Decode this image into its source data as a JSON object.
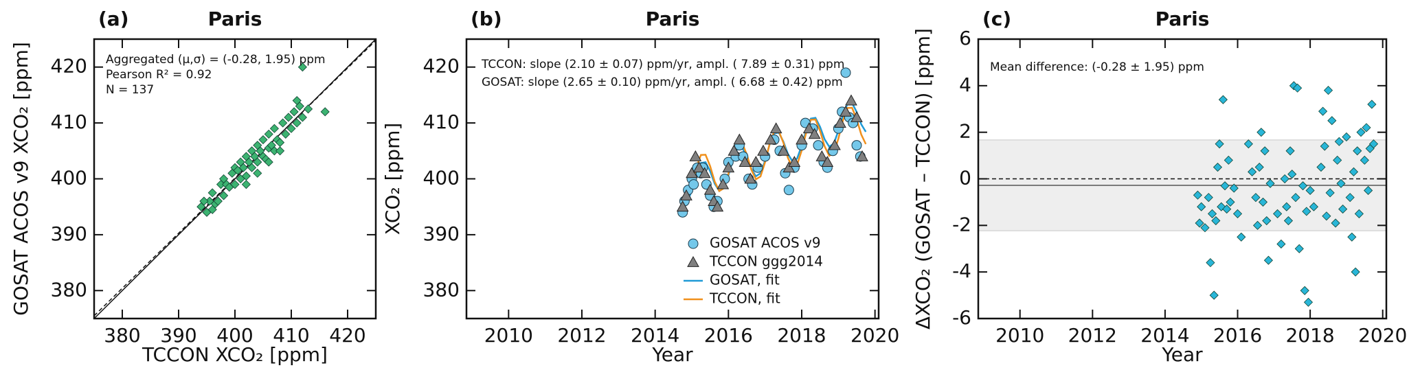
{
  "chart_data": [
    {
      "type": "scatter",
      "panel_label": "(a)",
      "title": "Paris",
      "x_label": "TCCON XCO₂ [ppm]",
      "y_label": "GOSAT ACOS v9 XCO₂ [ppm]",
      "annotations": [
        "Aggregated (μ,σ) = (-0.28, 1.95) ppm",
        "Pearson R² = 0.92",
        "N =  137"
      ],
      "color": "#3cb371",
      "marker": "diamond",
      "x": [
        394,
        395,
        395.5,
        396,
        396.5,
        397,
        397.5,
        398,
        398.5,
        399,
        399.5,
        400,
        400,
        400.5,
        401,
        401,
        401.5,
        402,
        402,
        402.5,
        403,
        403,
        403.5,
        404,
        404,
        404.5,
        405,
        405,
        405.5,
        406,
        406,
        406.5,
        407,
        407,
        407.5,
        408,
        408.5,
        409,
        409.5,
        410,
        410.5,
        411,
        411.5,
        412,
        412,
        413,
        416,
        394.5,
        396,
        398,
        402,
        404,
        406,
        408,
        411
      ],
      "values": [
        395,
        394,
        396,
        397.5,
        395.5,
        396,
        399,
        400,
        399,
        398.5,
        401,
        399,
        402,
        401.5,
        400,
        403,
        402,
        400.5,
        404,
        403,
        402,
        405,
        404,
        403,
        406,
        405,
        404,
        407,
        403.5,
        405.5,
        408,
        406,
        405,
        409,
        407,
        406.5,
        410,
        408,
        411,
        409,
        412,
        410,
        413,
        411,
        420,
        412.5,
        412,
        396,
        394.5,
        397,
        399,
        401,
        403,
        405,
        414
      ],
      "xlim": [
        375,
        425
      ],
      "ylim": [
        375,
        425
      ],
      "xticks": [
        380,
        390,
        400,
        410,
        420
      ],
      "yticks": [
        380,
        390,
        400,
        410,
        420
      ]
    },
    {
      "type": "scatter",
      "panel_label": "(b)",
      "title": "Paris",
      "x_label": "Year",
      "y_label": "XCO₂ [ppm]",
      "annotations": [
        "TCCON: slope (2.10 ± 0.07) ppm/yr, ampl. ( 7.89 ± 0.31) ppm",
        "GOSAT: slope (2.65 ± 0.10) ppm/yr, ampl. ( 6.68 ± 0.42) ppm"
      ],
      "legend": "lower right",
      "series": [
        {
          "name": "GOSAT ACOS v9",
          "color": "#74c8ea",
          "mark": "circle",
          "x": [
            2014.75,
            2014.8,
            2014.9,
            2015.0,
            2015.05,
            2015.15,
            2015.25,
            2015.3,
            2015.4,
            2015.5,
            2015.6,
            2015.7,
            2015.9,
            2016.0,
            2016.2,
            2016.3,
            2016.4,
            2016.55,
            2016.65,
            2016.8,
            2017.0,
            2017.25,
            2017.4,
            2017.55,
            2017.65,
            2017.8,
            2018.0,
            2018.1,
            2018.3,
            2018.45,
            2018.6,
            2018.7,
            2018.85,
            2019.0,
            2019.1,
            2019.2,
            2019.3,
            2019.4,
            2019.5,
            2019.6
          ],
          "values": [
            394,
            396,
            398,
            400,
            399,
            402,
            401,
            402,
            399,
            397,
            395,
            396,
            400,
            403,
            404,
            406,
            404,
            400,
            399,
            402,
            404,
            407,
            405,
            401,
            398,
            402,
            406,
            410,
            409,
            406,
            403,
            402,
            405,
            409,
            412,
            419,
            411,
            410,
            406,
            404
          ]
        },
        {
          "name": "TCCON ggg2014",
          "color": "#808080",
          "mark": "triangle",
          "x": [
            2014.75,
            2014.85,
            2015.0,
            2015.1,
            2015.2,
            2015.35,
            2015.5,
            2015.6,
            2015.7,
            2015.85,
            2016.0,
            2016.15,
            2016.3,
            2016.45,
            2016.6,
            2016.75,
            2016.95,
            2017.15,
            2017.3,
            2017.5,
            2017.65,
            2017.8,
            2018.0,
            2018.2,
            2018.35,
            2018.55,
            2018.7,
            2018.9,
            2019.05,
            2019.2,
            2019.35,
            2019.5,
            2019.65
          ],
          "values": [
            395,
            397,
            401,
            404,
            402,
            401,
            398,
            396,
            395,
            399,
            402,
            405,
            407,
            403,
            400,
            403,
            405,
            407,
            409,
            405,
            402,
            403,
            407,
            409,
            408,
            404,
            403,
            406,
            410,
            412,
            414,
            411,
            404
          ]
        },
        {
          "name": "GOSAT, fit",
          "color": "#1f9ad6",
          "mark": "line",
          "x": [
            2014.75,
            2014.875,
            2015.0,
            2015.125,
            2015.25,
            2015.375,
            2015.5,
            2015.625,
            2015.75,
            2015.875,
            2016.0,
            2016.125,
            2016.25,
            2016.375,
            2016.5,
            2016.625,
            2016.75,
            2016.875,
            2017.0,
            2017.125,
            2017.25,
            2017.375,
            2017.5,
            2017.625,
            2017.75,
            2017.875,
            2018.0,
            2018.125,
            2018.25,
            2018.375,
            2018.5,
            2018.625,
            2018.75,
            2018.875,
            2019.0,
            2019.125,
            2019.25,
            2019.375,
            2019.5,
            2019.625,
            2019.75
          ],
          "values": [
            395.16,
            395.69,
            397.97,
            400.85,
            402.84,
            402.97,
            401.36,
            399.14,
            397.81,
            398.34,
            400.62,
            403.5,
            405.49,
            405.62,
            404.01,
            401.79,
            400.46,
            400.99,
            403.27,
            406.15,
            408.14,
            408.27,
            406.66,
            404.44,
            403.11,
            403.64,
            405.92,
            408.8,
            410.79,
            410.92,
            409.31,
            407.09,
            405.76,
            406.29,
            408.57,
            411.45,
            413.44,
            413.57,
            411.96,
            409.74,
            408.41
          ]
        },
        {
          "name": "TCCON, fit",
          "color": "#f0901c",
          "mark": "line",
          "x": [
            2014.75,
            2014.875,
            2015.0,
            2015.125,
            2015.25,
            2015.375,
            2015.5,
            2015.625,
            2015.75,
            2015.875,
            2016.0,
            2016.125,
            2016.25,
            2016.375,
            2016.5,
            2016.625,
            2016.75,
            2016.875,
            2017.0,
            2017.125,
            2017.25,
            2017.375,
            2017.5,
            2017.625,
            2017.75,
            2017.875,
            2018.0,
            2018.125,
            2018.25,
            2018.375,
            2018.5,
            2018.625,
            2018.75,
            2018.875,
            2019.0,
            2019.125,
            2019.25,
            2019.375,
            2019.5,
            2019.625,
            2019.75
          ],
          "values": [
            395.72,
            396.22,
            398.78,
            402.06,
            404.28,
            404.31,
            402.27,
            399.52,
            397.82,
            398.32,
            400.88,
            404.16,
            406.38,
            406.41,
            404.37,
            401.62,
            399.92,
            400.42,
            402.98,
            406.26,
            408.48,
            408.51,
            406.47,
            403.72,
            402.02,
            402.52,
            405.08,
            408.36,
            410.58,
            410.61,
            408.57,
            405.82,
            404.12,
            404.62,
            407.18,
            410.46,
            412.68,
            412.71,
            410.67,
            407.92,
            406.22
          ]
        }
      ],
      "xlim": [
        2008.85,
        2020.1
      ],
      "ylim": [
        375,
        425
      ],
      "xticks": [
        2010,
        2012,
        2014,
        2016,
        2018,
        2020
      ],
      "yticks": [
        380,
        390,
        400,
        410,
        420
      ]
    },
    {
      "type": "scatter",
      "panel_label": "(c)",
      "title": "Paris",
      "x_label": "Year",
      "y_label": "ΔXCO₂ (GOSAT – TCCON) [ppm]",
      "annotations": [
        "Mean difference: (-0.28 ± 1.95) ppm"
      ],
      "mean": -0.28,
      "std": 1.95,
      "color": "#29b6d8",
      "marker": "diamond",
      "x": [
        2014.9,
        2014.95,
        2015.0,
        2015.1,
        2015.2,
        2015.25,
        2015.3,
        2015.35,
        2015.4,
        2015.45,
        2015.5,
        2015.55,
        2015.6,
        2015.65,
        2015.7,
        2015.75,
        2015.8,
        2015.9,
        2016.0,
        2016.1,
        2016.3,
        2016.4,
        2016.5,
        2016.55,
        2016.6,
        2016.65,
        2016.7,
        2016.75,
        2016.8,
        2016.85,
        2016.9,
        2017.1,
        2017.2,
        2017.3,
        2017.35,
        2017.4,
        2017.45,
        2017.5,
        2017.55,
        2017.6,
        2017.65,
        2017.7,
        2017.8,
        2017.85,
        2017.9,
        2017.95,
        2018.0,
        2018.1,
        2018.3,
        2018.35,
        2018.4,
        2018.45,
        2018.5,
        2018.55,
        2018.6,
        2018.7,
        2018.75,
        2018.8,
        2018.85,
        2018.9,
        2019.0,
        2019.1,
        2019.15,
        2019.2,
        2019.25,
        2019.3,
        2019.35,
        2019.4,
        2019.5,
        2019.55,
        2019.6,
        2019.65,
        2019.7,
        2019.75
      ],
      "values": [
        -0.7,
        -1.9,
        -1.2,
        -2.1,
        -0.8,
        -3.6,
        -1.5,
        -5.0,
        -1.8,
        0.5,
        1.5,
        -1.2,
        3.4,
        -0.3,
        -1.3,
        0.8,
        -1.0,
        -0.4,
        -1.5,
        -2.5,
        1.5,
        0.3,
        -0.8,
        -2.0,
        0.5,
        2.0,
        -1.0,
        1.2,
        -1.8,
        -3.5,
        -0.2,
        -1.5,
        -2.8,
        0.0,
        -1.2,
        -1.8,
        1.2,
        0.2,
        4.0,
        -0.8,
        3.9,
        -3.0,
        -0.3,
        -4.8,
        -1.4,
        -5.3,
        -0.5,
        -1.2,
        0.5,
        2.9,
        1.4,
        -1.6,
        3.8,
        -0.6,
        2.5,
        -1.9,
        0.8,
        1.6,
        -0.2,
        -1.3,
        1.8,
        -0.8,
        -2.5,
        0.3,
        -4.0,
        1.2,
        -1.5,
        2.0,
        0.8,
        2.2,
        -0.5,
        1.3,
        3.2,
        1.5
      ],
      "xlim": [
        2008.85,
        2020.1
      ],
      "ylim": [
        -6,
        6
      ],
      "xticks": [
        2010,
        2012,
        2014,
        2016,
        2018,
        2020
      ],
      "yticks": [
        -6,
        -4,
        -2,
        0,
        2,
        4,
        6
      ]
    }
  ]
}
